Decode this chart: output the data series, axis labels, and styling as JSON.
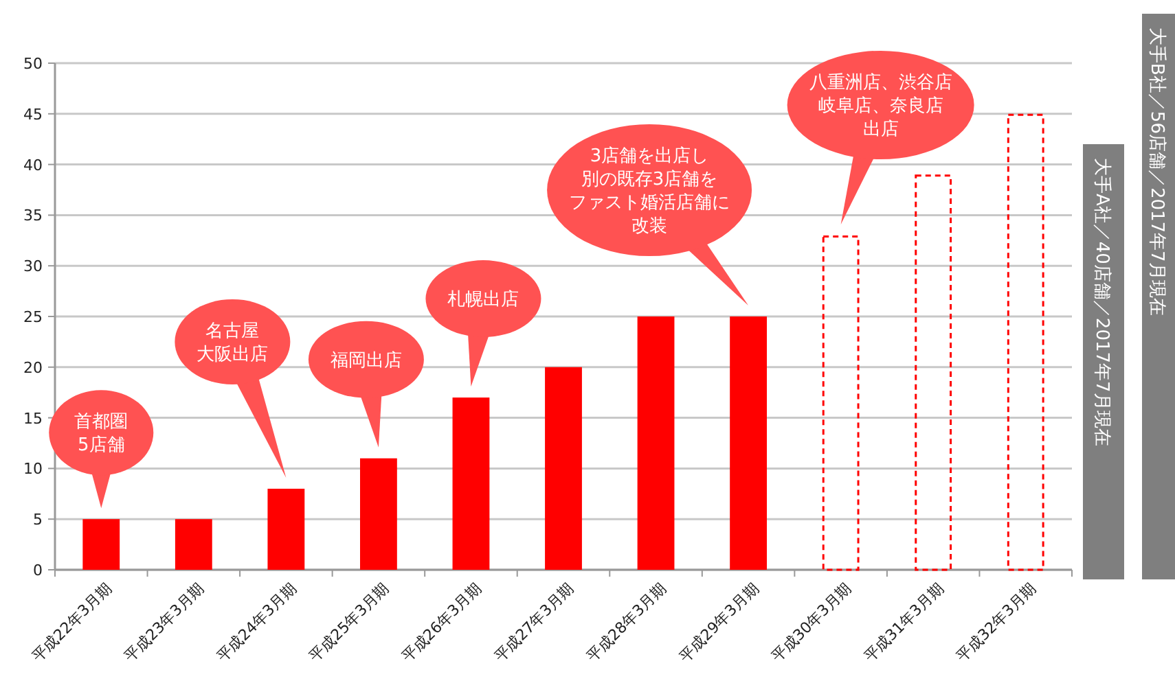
{
  "chart_data": {
    "type": "bar",
    "stacked": true,
    "categories": [
      "平成22年3月期",
      "平成23年3月期",
      "平成24年3月期",
      "平成25年3月期",
      "平成26年3月期",
      "平成27年3月期",
      "平成28年3月期",
      "平成29年3月期",
      "平成30年3月期",
      "平成31年3月期",
      "平成32年3月期"
    ],
    "series": [
      {
        "color": "#ff0000",
        "values": [
          5,
          5,
          8,
          11,
          17,
          20,
          25,
          25,
          null,
          null,
          null
        ]
      },
      {
        "color": "#ff0000",
        "line_style": "dashed",
        "values": [
          null,
          null,
          null,
          null,
          null,
          null,
          null,
          null,
          33,
          39,
          45
        ]
      }
    ],
    "ylim": [
      0,
      50
    ],
    "yticks": [
      0,
      5,
      10,
      15,
      20,
      25,
      30,
      35,
      40,
      45,
      50
    ],
    "grid": "y",
    "annotations": [
      "首都圏5店舗",
      "名古屋大阪出店",
      "福岡出店",
      "札幌出店",
      "3店舗を出店し別の既存3店舗をファスト婚活店舗に改装",
      "八重洲店、渋谷店岐阜店、奈良店出店",
      "大手A社／40店舗／2017年7月現在",
      "大手B社／56店舗／2017年7月現在"
    ]
  }
}
